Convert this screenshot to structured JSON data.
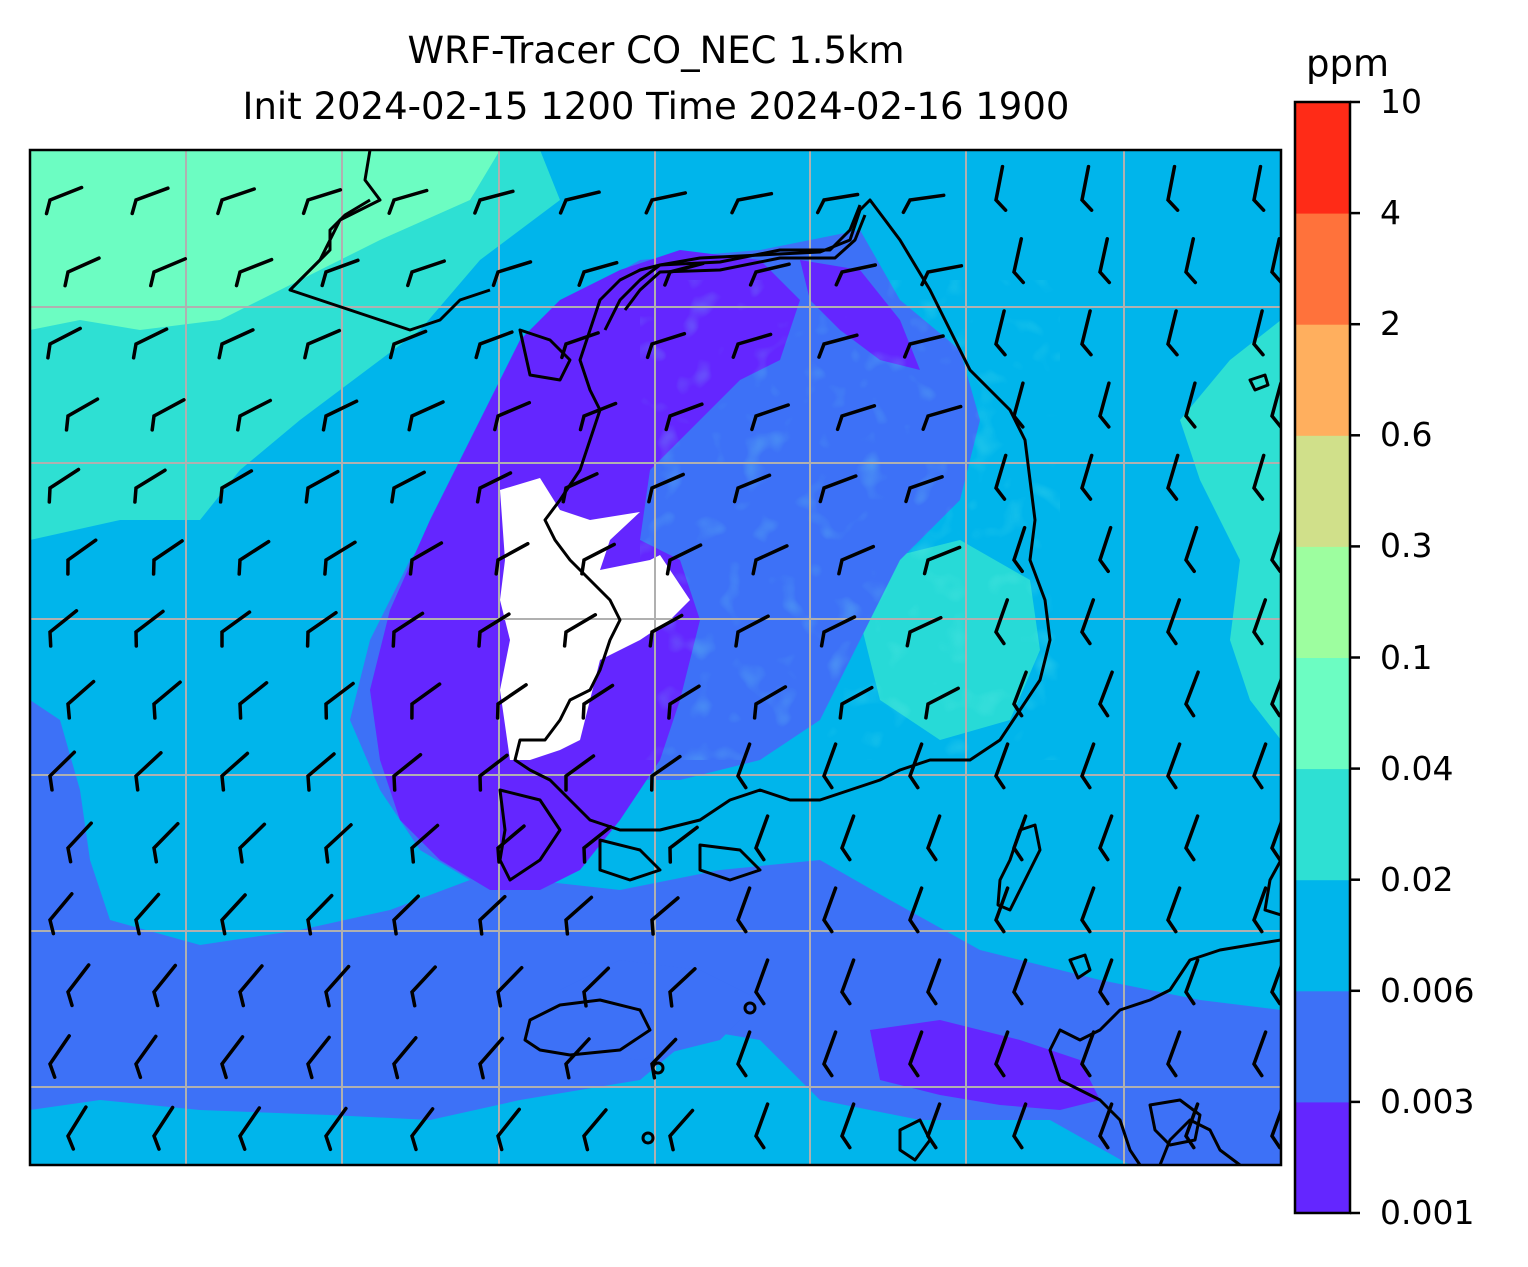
{
  "title": {
    "line1": "WRF-Tracer CO_NEC 1.5km",
    "line2": "Init 2024-02-15 1200 Time 2024-02-16 1900"
  },
  "colorbar": {
    "unit": "ppm",
    "ticks": [
      "0.001",
      "0.003",
      "0.006",
      "0.02",
      "0.04",
      "0.1",
      "0.3",
      "0.6",
      "2",
      "4",
      "10"
    ],
    "colors": [
      "#6426ff",
      "#3d71f7",
      "#00b5eb",
      "#2ee0d3",
      "#6cfdc2",
      "#9dfe9f",
      "#d0e08a",
      "#ffaf5e",
      "#ff723b",
      "#ff2b17"
    ]
  },
  "map": {
    "gridlines": true,
    "land_outlines": true,
    "wind_barbs": true
  }
}
